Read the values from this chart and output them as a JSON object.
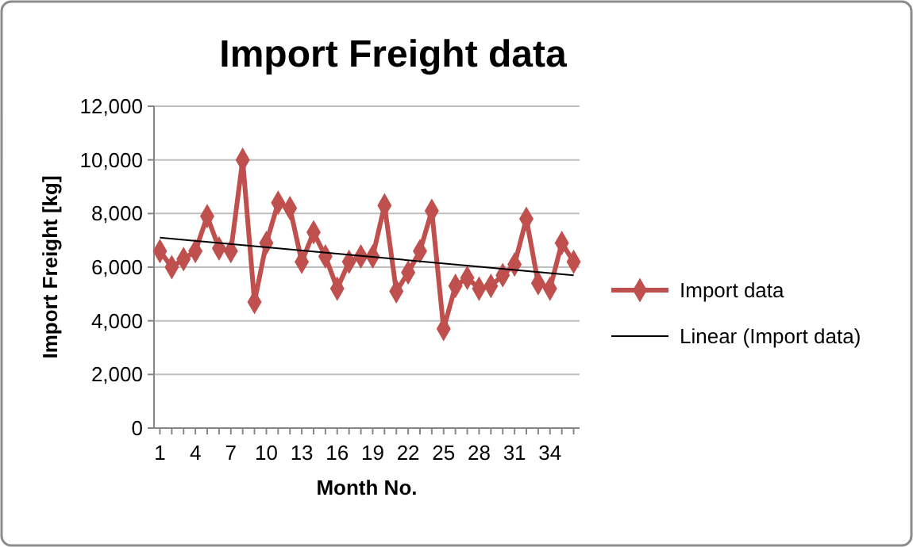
{
  "chart_data": {
    "type": "line",
    "title": "Import Freight data",
    "xlabel": "Month No.",
    "ylabel": "Import Freight [kg]",
    "x": [
      1,
      2,
      3,
      4,
      5,
      6,
      7,
      8,
      9,
      10,
      11,
      12,
      13,
      14,
      15,
      16,
      17,
      18,
      19,
      20,
      21,
      22,
      23,
      24,
      25,
      26,
      27,
      28,
      29,
      30,
      31,
      32,
      33,
      34,
      35,
      36
    ],
    "xlim": [
      0.5,
      36.5
    ],
    "xticks": [
      1,
      {
        "value": 2,
        "label": null
      },
      {
        "value": 3,
        "label": null
      },
      4,
      {
        "value": 5,
        "label": null
      },
      {
        "value": 6,
        "label": null
      },
      7,
      {
        "value": 8,
        "label": null
      },
      {
        "value": 9,
        "label": null
      },
      10,
      {
        "value": 11,
        "label": null
      },
      {
        "value": 12,
        "label": null
      },
      13,
      {
        "value": 14,
        "label": null
      },
      {
        "value": 15,
        "label": null
      },
      16,
      {
        "value": 17,
        "label": null
      },
      {
        "value": 18,
        "label": null
      },
      19,
      {
        "value": 20,
        "label": null
      },
      {
        "value": 21,
        "label": null
      },
      22,
      {
        "value": 23,
        "label": null
      },
      {
        "value": 24,
        "label": null
      },
      25,
      {
        "value": 26,
        "label": null
      },
      {
        "value": 27,
        "label": null
      },
      28,
      {
        "value": 29,
        "label": null
      },
      {
        "value": 30,
        "label": null
      },
      31,
      {
        "value": 32,
        "label": null
      },
      {
        "value": 33,
        "label": null
      },
      34,
      {
        "value": 35,
        "label": null
      },
      {
        "value": 36,
        "label": null
      }
    ],
    "ylim": [
      0,
      12000
    ],
    "yticks": [
      {
        "value": 0,
        "label": "0"
      },
      {
        "value": 2000,
        "label": "2,000"
      },
      {
        "value": 4000,
        "label": "4,000"
      },
      {
        "value": 6000,
        "label": "6,000"
      },
      {
        "value": 8000,
        "label": "8,000"
      },
      {
        "value": 10000,
        "label": "10,000"
      },
      {
        "value": 12000,
        "label": "12,000"
      }
    ],
    "grid": "y",
    "legend": "right",
    "series": [
      {
        "name": "Import data",
        "color": "#c0504d",
        "marker": "diamond",
        "values": [
          6600,
          6000,
          6300,
          6600,
          7900,
          6700,
          6600,
          10000,
          4700,
          6900,
          8400,
          8200,
          6200,
          7300,
          6400,
          5200,
          6200,
          6400,
          6400,
          8300,
          5100,
          5800,
          6600,
          8100,
          3700,
          5300,
          5600,
          5200,
          5300,
          5700,
          6100,
          7800,
          5400,
          5200,
          6900,
          6200
        ]
      },
      {
        "name": "Linear (Import data)",
        "color": "#000000",
        "marker": "none",
        "x": [
          1,
          36
        ],
        "values": [
          7100,
          5700
        ]
      }
    ]
  }
}
